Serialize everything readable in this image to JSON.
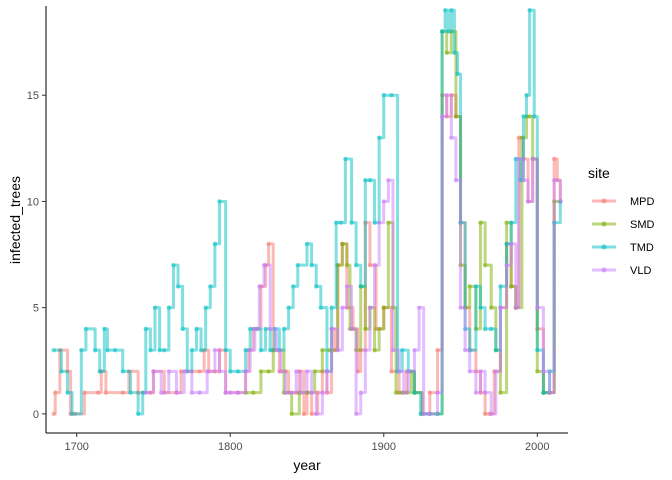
{
  "chart_data": {
    "type": "line",
    "line_style": "step",
    "xlabel": "year",
    "ylabel": "infected_trees",
    "xlim": [
      1680,
      2020
    ],
    "ylim": [
      -0.9,
      19.2
    ],
    "xticks": [
      1700,
      1800,
      1900,
      2000
    ],
    "yticks": [
      0,
      5,
      10,
      15
    ],
    "grid": false,
    "legend": {
      "title": "site",
      "position": "right"
    },
    "series": [
      {
        "name": "MPD",
        "color": "#F8766D",
        "points": [
          [
            1685,
            0
          ],
          [
            1686,
            1
          ],
          [
            1689,
            3
          ],
          [
            1694,
            2
          ],
          [
            1696,
            0
          ],
          [
            1699,
            0
          ],
          [
            1705,
            1
          ],
          [
            1714,
            1
          ],
          [
            1716,
            2
          ],
          [
            1719,
            1
          ],
          [
            1730,
            1
          ],
          [
            1734,
            2
          ],
          [
            1740,
            1
          ],
          [
            1748,
            1
          ],
          [
            1750,
            2
          ],
          [
            1757,
            1
          ],
          [
            1765,
            1
          ],
          [
            1768,
            2
          ],
          [
            1775,
            2
          ],
          [
            1780,
            2
          ],
          [
            1783,
            3
          ],
          [
            1786,
            2
          ],
          [
            1790,
            2
          ],
          [
            1793,
            3
          ],
          [
            1797,
            1
          ],
          [
            1805,
            1
          ],
          [
            1810,
            2
          ],
          [
            1812,
            3
          ],
          [
            1815,
            4
          ],
          [
            1818,
            4
          ],
          [
            1820,
            6
          ],
          [
            1823,
            7
          ],
          [
            1825,
            8
          ],
          [
            1828,
            3
          ],
          [
            1832,
            2
          ],
          [
            1836,
            2
          ],
          [
            1838,
            1
          ],
          [
            1843,
            1
          ],
          [
            1845,
            2
          ],
          [
            1848,
            0
          ],
          [
            1850,
            1
          ],
          [
            1853,
            0
          ],
          [
            1857,
            1
          ],
          [
            1860,
            2
          ],
          [
            1863,
            1
          ],
          [
            1866,
            4
          ],
          [
            1868,
            3
          ],
          [
            1870,
            7
          ],
          [
            1873,
            8
          ],
          [
            1876,
            5
          ],
          [
            1880,
            4
          ],
          [
            1883,
            2
          ],
          [
            1885,
            3
          ],
          [
            1888,
            9
          ],
          [
            1891,
            7
          ],
          [
            1895,
            4
          ],
          [
            1900,
            5
          ],
          [
            1905,
            2
          ],
          [
            1910,
            1
          ],
          [
            1915,
            2
          ],
          [
            1920,
            1
          ],
          [
            1925,
            0
          ],
          [
            1930,
            1
          ],
          [
            1935,
            3
          ],
          [
            1938,
            15
          ],
          [
            1941,
            14
          ],
          [
            1944,
            15
          ],
          [
            1947,
            14
          ],
          [
            1950,
            9
          ],
          [
            1953,
            5
          ],
          [
            1956,
            3
          ],
          [
            1960,
            2
          ],
          [
            1963,
            1
          ],
          [
            1966,
            0
          ],
          [
            1969,
            0
          ],
          [
            1972,
            2
          ],
          [
            1976,
            5
          ],
          [
            1980,
            8
          ],
          [
            1983,
            6
          ],
          [
            1986,
            5
          ],
          [
            1988,
            13
          ],
          [
            1991,
            12
          ],
          [
            1994,
            10
          ],
          [
            1997,
            12
          ],
          [
            2000,
            4
          ],
          [
            2004,
            1
          ],
          [
            2008,
            1
          ],
          [
            2011,
            12
          ],
          [
            2013,
            11
          ],
          [
            2015,
            10
          ]
        ]
      },
      {
        "name": "SMD",
        "color": "#7CAE00",
        "points": [
          [
            1810,
            1
          ],
          [
            1815,
            1
          ],
          [
            1820,
            2
          ],
          [
            1825,
            2
          ],
          [
            1828,
            3
          ],
          [
            1835,
            1
          ],
          [
            1840,
            0
          ],
          [
            1845,
            1
          ],
          [
            1850,
            1
          ],
          [
            1855,
            2
          ],
          [
            1860,
            3
          ],
          [
            1865,
            3
          ],
          [
            1870,
            7
          ],
          [
            1873,
            8
          ],
          [
            1876,
            7
          ],
          [
            1878,
            4
          ],
          [
            1882,
            3
          ],
          [
            1885,
            6
          ],
          [
            1888,
            4
          ],
          [
            1891,
            5
          ],
          [
            1894,
            3
          ],
          [
            1897,
            4
          ],
          [
            1900,
            5
          ],
          [
            1903,
            9
          ],
          [
            1906,
            5
          ],
          [
            1908,
            1
          ],
          [
            1912,
            1
          ],
          [
            1915,
            1
          ],
          [
            1918,
            2
          ],
          [
            1920,
            1
          ],
          [
            1925,
            0
          ],
          [
            1930,
            0
          ],
          [
            1935,
            0
          ],
          [
            1938,
            18
          ],
          [
            1941,
            17
          ],
          [
            1944,
            18
          ],
          [
            1947,
            14
          ],
          [
            1950,
            7
          ],
          [
            1953,
            5
          ],
          [
            1956,
            6
          ],
          [
            1960,
            4
          ],
          [
            1963,
            9
          ],
          [
            1966,
            7
          ],
          [
            1970,
            5
          ],
          [
            1973,
            3
          ],
          [
            1976,
            1
          ],
          [
            1980,
            9
          ],
          [
            1983,
            6
          ],
          [
            1986,
            5
          ],
          [
            1990,
            13
          ],
          [
            1993,
            14
          ],
          [
            1995,
            14
          ],
          [
            1997,
            12
          ],
          [
            2000,
            2
          ],
          [
            2004,
            1
          ],
          [
            2008,
            1
          ],
          [
            2011,
            10
          ],
          [
            2015,
            10
          ]
        ]
      },
      {
        "name": "TMD",
        "color": "#00BFC4",
        "points": [
          [
            1685,
            3
          ],
          [
            1690,
            2
          ],
          [
            1694,
            1
          ],
          [
            1697,
            0
          ],
          [
            1703,
            3
          ],
          [
            1706,
            4
          ],
          [
            1712,
            3
          ],
          [
            1715,
            2
          ],
          [
            1718,
            4
          ],
          [
            1720,
            3
          ],
          [
            1725,
            3
          ],
          [
            1730,
            2
          ],
          [
            1735,
            1
          ],
          [
            1740,
            0
          ],
          [
            1743,
            1
          ],
          [
            1745,
            4
          ],
          [
            1748,
            3
          ],
          [
            1751,
            5
          ],
          [
            1754,
            3
          ],
          [
            1757,
            3
          ],
          [
            1760,
            5
          ],
          [
            1763,
            7
          ],
          [
            1766,
            6
          ],
          [
            1769,
            4
          ],
          [
            1772,
            2
          ],
          [
            1775,
            3
          ],
          [
            1778,
            4
          ],
          [
            1781,
            3
          ],
          [
            1784,
            5
          ],
          [
            1787,
            6
          ],
          [
            1790,
            8
          ],
          [
            1793,
            10
          ],
          [
            1797,
            3
          ],
          [
            1800,
            2
          ],
          [
            1805,
            2
          ],
          [
            1810,
            3
          ],
          [
            1813,
            4
          ],
          [
            1817,
            4
          ],
          [
            1820,
            3
          ],
          [
            1823,
            4
          ],
          [
            1826,
            3
          ],
          [
            1829,
            4
          ],
          [
            1832,
            3
          ],
          [
            1835,
            4
          ],
          [
            1838,
            5
          ],
          [
            1841,
            6
          ],
          [
            1844,
            7
          ],
          [
            1850,
            8
          ],
          [
            1853,
            7
          ],
          [
            1856,
            6
          ],
          [
            1859,
            5
          ],
          [
            1863,
            2
          ],
          [
            1866,
            5
          ],
          [
            1869,
            9
          ],
          [
            1872,
            9
          ],
          [
            1875,
            12
          ],
          [
            1879,
            9
          ],
          [
            1882,
            7
          ],
          [
            1885,
            6
          ],
          [
            1888,
            11
          ],
          [
            1891,
            11
          ],
          [
            1894,
            9
          ],
          [
            1897,
            13
          ],
          [
            1900,
            15
          ],
          [
            1905,
            15
          ],
          [
            1909,
            2
          ],
          [
            1912,
            3
          ],
          [
            1916,
            2
          ],
          [
            1920,
            1
          ],
          [
            1924,
            0
          ],
          [
            1930,
            0
          ],
          [
            1935,
            0
          ],
          [
            1938,
            18
          ],
          [
            1940,
            19
          ],
          [
            1942,
            18
          ],
          [
            1944,
            19
          ],
          [
            1946,
            17
          ],
          [
            1948,
            16
          ],
          [
            1950,
            9
          ],
          [
            1953,
            4
          ],
          [
            1956,
            3
          ],
          [
            1960,
            6
          ],
          [
            1963,
            5
          ],
          [
            1966,
            4
          ],
          [
            1970,
            4
          ],
          [
            1973,
            3
          ],
          [
            1976,
            6
          ],
          [
            1980,
            8
          ],
          [
            1983,
            9
          ],
          [
            1986,
            12
          ],
          [
            1989,
            11
          ],
          [
            1991,
            14
          ],
          [
            1993,
            15
          ],
          [
            1995,
            19
          ],
          [
            1998,
            14
          ],
          [
            2000,
            3
          ],
          [
            2004,
            1
          ],
          [
            2008,
            2
          ],
          [
            2011,
            9
          ],
          [
            2015,
            10
          ]
        ]
      },
      {
        "name": "VLD",
        "color": "#C77CFF",
        "points": [
          [
            1745,
            1
          ],
          [
            1750,
            2
          ],
          [
            1755,
            1
          ],
          [
            1760,
            2
          ],
          [
            1765,
            1
          ],
          [
            1770,
            2
          ],
          [
            1775,
            1
          ],
          [
            1780,
            1
          ],
          [
            1785,
            2
          ],
          [
            1790,
            3
          ],
          [
            1793,
            2
          ],
          [
            1797,
            1
          ],
          [
            1800,
            1
          ],
          [
            1805,
            1
          ],
          [
            1810,
            2
          ],
          [
            1813,
            3
          ],
          [
            1816,
            4
          ],
          [
            1819,
            6
          ],
          [
            1822,
            7
          ],
          [
            1826,
            4
          ],
          [
            1830,
            3
          ],
          [
            1833,
            2
          ],
          [
            1836,
            1
          ],
          [
            1840,
            1
          ],
          [
            1843,
            2
          ],
          [
            1846,
            1
          ],
          [
            1850,
            2
          ],
          [
            1853,
            1
          ],
          [
            1856,
            0
          ],
          [
            1860,
            1
          ],
          [
            1863,
            2
          ],
          [
            1866,
            4
          ],
          [
            1870,
            3
          ],
          [
            1873,
            5
          ],
          [
            1876,
            6
          ],
          [
            1879,
            4
          ],
          [
            1882,
            0
          ],
          [
            1885,
            1
          ],
          [
            1888,
            3
          ],
          [
            1891,
            5
          ],
          [
            1894,
            7
          ],
          [
            1897,
            9
          ],
          [
            1900,
            10
          ],
          [
            1903,
            11
          ],
          [
            1906,
            3
          ],
          [
            1910,
            2
          ],
          [
            1913,
            1
          ],
          [
            1916,
            2
          ],
          [
            1920,
            3
          ],
          [
            1923,
            5
          ],
          [
            1926,
            0
          ],
          [
            1930,
            0
          ],
          [
            1935,
            1
          ],
          [
            1938,
            14
          ],
          [
            1941,
            15
          ],
          [
            1944,
            13
          ],
          [
            1947,
            11
          ],
          [
            1950,
            5
          ],
          [
            1953,
            3
          ],
          [
            1956,
            2
          ],
          [
            1960,
            1
          ],
          [
            1963,
            2
          ],
          [
            1966,
            1
          ],
          [
            1970,
            0
          ],
          [
            1973,
            2
          ],
          [
            1976,
            5
          ],
          [
            1980,
            7
          ],
          [
            1983,
            8
          ],
          [
            1986,
            5
          ],
          [
            1988,
            12
          ],
          [
            1991,
            11
          ],
          [
            1994,
            10
          ],
          [
            1997,
            12
          ],
          [
            2000,
            5
          ],
          [
            2004,
            2
          ],
          [
            2008,
            1
          ],
          [
            2011,
            11
          ],
          [
            2015,
            10
          ]
        ]
      }
    ]
  }
}
